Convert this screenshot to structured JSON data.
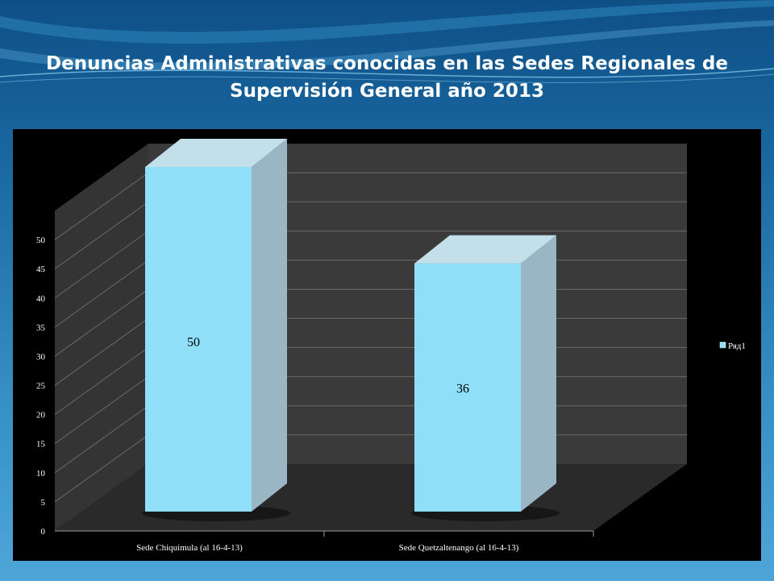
{
  "slide": {
    "title_line1": "Denuncias Administrativas conocidas en las Sedes Regionales de",
    "title_line2": "Supervisión  General año 2013"
  },
  "colors": {
    "bar_front": "#8fdff8",
    "bar_side": "#9ab6c5",
    "bar_top": "#c3dfe9",
    "background_top": "#0e4f86",
    "background_bottom": "#4ea6d8"
  },
  "chart_data": {
    "type": "bar",
    "title": "",
    "categories": [
      "Sede Chiquimula (al 16-4-13)",
      "Sede Quetzaltenango (al 16-4-13)"
    ],
    "series": [
      {
        "name": "Ряд1",
        "values": [
          50,
          36
        ]
      }
    ],
    "data_labels": [
      "50",
      "36"
    ],
    "yticks": [
      0,
      5,
      10,
      15,
      20,
      25,
      30,
      35,
      40,
      45,
      50
    ],
    "ylim": [
      0,
      55
    ],
    "grid": true,
    "three_d": true,
    "legend_position": "right"
  }
}
